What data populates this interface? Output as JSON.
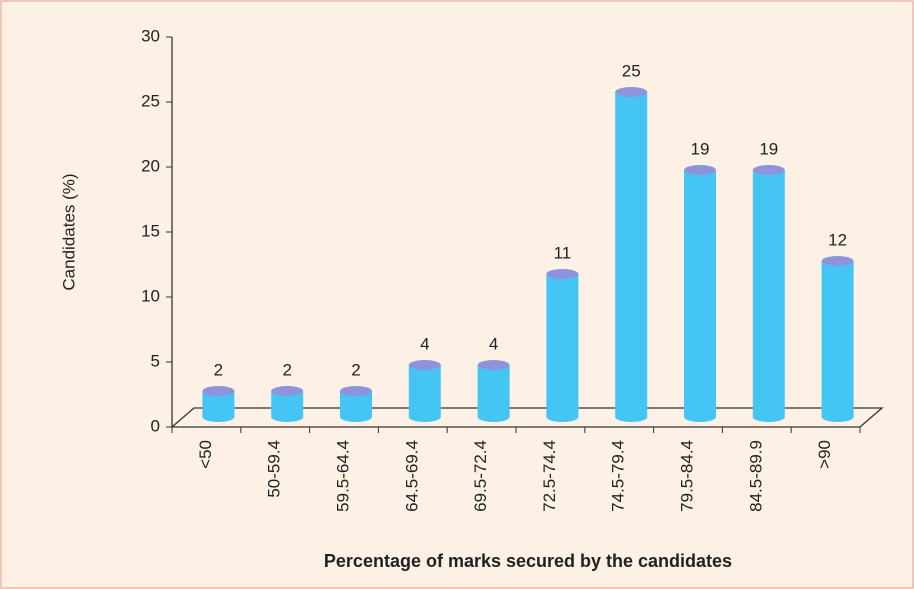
{
  "chart_data": {
    "type": "bar",
    "categories": [
      "<50",
      "50-59.4",
      "59.5-64.4",
      "64.5-69.4",
      "69.5-72.4",
      "72.5-74.4",
      "74.5-79.4",
      "79.5-84.4",
      "84.5-89.9",
      ">90"
    ],
    "values": [
      2,
      2,
      2,
      4,
      4,
      11,
      25,
      19,
      19,
      12
    ],
    "color": "#45c5f3",
    "top_color": "#8e94dc",
    "ylim": [
      0,
      30
    ],
    "yticks": [
      0,
      5,
      10,
      15,
      20,
      25,
      30
    ],
    "y_label": "Candidates (%)",
    "x_label": "Percentage of marks secured by the candidates"
  }
}
